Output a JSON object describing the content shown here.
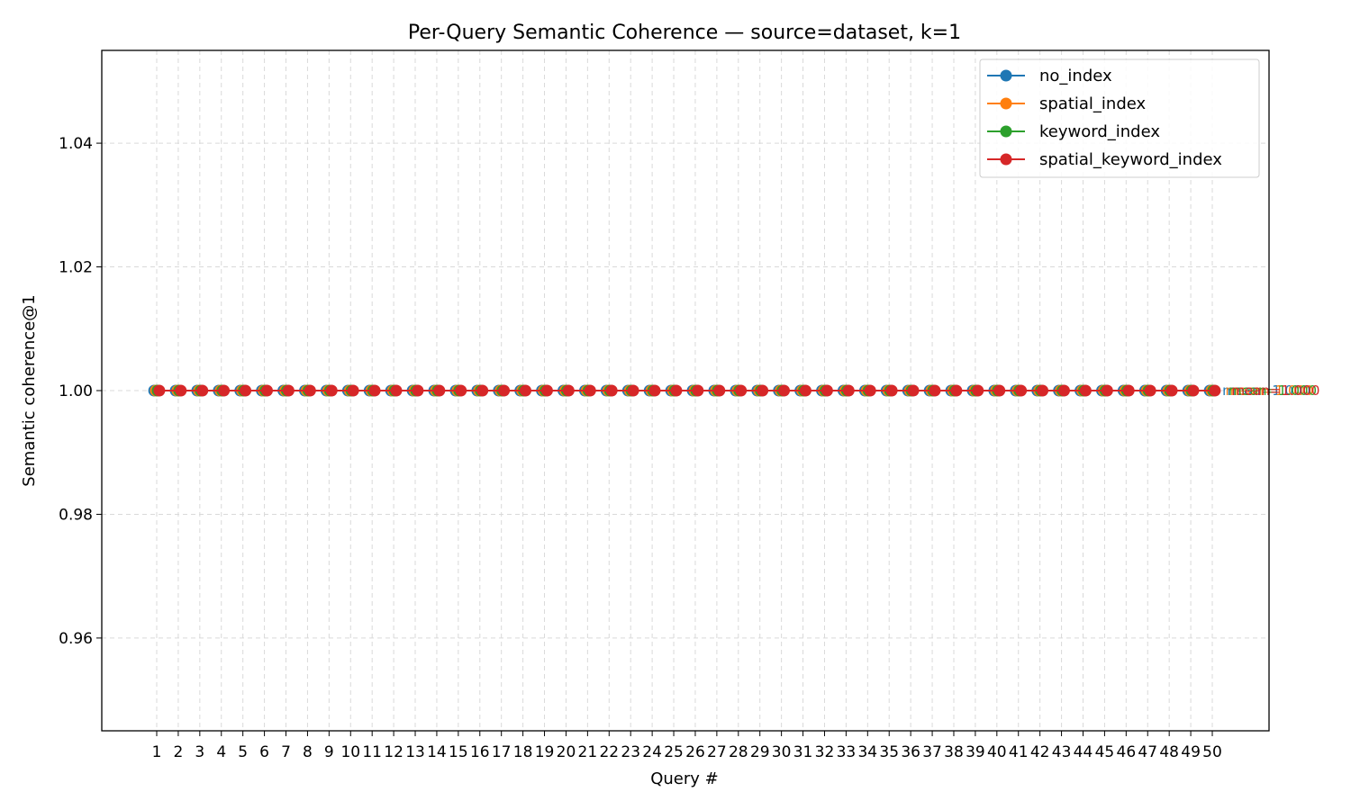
{
  "chart_data": {
    "type": "line",
    "title": "Per-Query Semantic Coherence — source=dataset, k=1",
    "xlabel": "Query #",
    "ylabel": "Semantic coherence@1",
    "x": [
      1,
      2,
      3,
      4,
      5,
      6,
      7,
      8,
      9,
      10,
      11,
      12,
      13,
      14,
      15,
      16,
      17,
      18,
      19,
      20,
      21,
      22,
      23,
      24,
      25,
      26,
      27,
      28,
      29,
      30,
      31,
      32,
      33,
      34,
      35,
      36,
      37,
      38,
      39,
      40,
      41,
      42,
      43,
      44,
      45,
      46,
      47,
      48,
      49,
      50
    ],
    "xticks": [
      "1",
      "2",
      "3",
      "4",
      "5",
      "6",
      "7",
      "8",
      "9",
      "10",
      "11",
      "12",
      "13",
      "14",
      "15",
      "16",
      "17",
      "18",
      "19",
      "20",
      "21",
      "22",
      "23",
      "24",
      "25",
      "26",
      "27",
      "28",
      "29",
      "30",
      "31",
      "32",
      "33",
      "34",
      "35",
      "36",
      "37",
      "38",
      "39",
      "40",
      "41",
      "42",
      "43",
      "44",
      "45",
      "46",
      "47",
      "48",
      "49",
      "50"
    ],
    "ylim": [
      0.945,
      1.055
    ],
    "yticks": [
      "0.96",
      "0.98",
      "1.00",
      "1.02",
      "1.04"
    ],
    "grid": true,
    "legend_position": "top-right",
    "series": [
      {
        "name": "no_index",
        "color": "#1f77b4",
        "offset": -0.12,
        "mean_label": "mean=1.000",
        "values": [
          1,
          1,
          1,
          1,
          1,
          1,
          1,
          1,
          1,
          1,
          1,
          1,
          1,
          1,
          1,
          1,
          1,
          1,
          1,
          1,
          1,
          1,
          1,
          1,
          1,
          1,
          1,
          1,
          1,
          1,
          1,
          1,
          1,
          1,
          1,
          1,
          1,
          1,
          1,
          1,
          1,
          1,
          1,
          1,
          1,
          1,
          1,
          1,
          1,
          1
        ]
      },
      {
        "name": "spatial_index",
        "color": "#ff7f0e",
        "offset": -0.04,
        "mean_label": "mean=1.000",
        "values": [
          1,
          1,
          1,
          1,
          1,
          1,
          1,
          1,
          1,
          1,
          1,
          1,
          1,
          1,
          1,
          1,
          1,
          1,
          1,
          1,
          1,
          1,
          1,
          1,
          1,
          1,
          1,
          1,
          1,
          1,
          1,
          1,
          1,
          1,
          1,
          1,
          1,
          1,
          1,
          1,
          1,
          1,
          1,
          1,
          1,
          1,
          1,
          1,
          1,
          1
        ]
      },
      {
        "name": "keyword_index",
        "color": "#2ca02c",
        "offset": 0.04,
        "mean_label": "mean=1.000",
        "values": [
          1,
          1,
          1,
          1,
          1,
          1,
          1,
          1,
          1,
          1,
          1,
          1,
          1,
          1,
          1,
          1,
          1,
          1,
          1,
          1,
          1,
          1,
          1,
          1,
          1,
          1,
          1,
          1,
          1,
          1,
          1,
          1,
          1,
          1,
          1,
          1,
          1,
          1,
          1,
          1,
          1,
          1,
          1,
          1,
          1,
          1,
          1,
          1,
          1,
          1
        ]
      },
      {
        "name": "spatial_keyword_index",
        "color": "#d62728",
        "offset": 0.12,
        "mean_label": "mean=1.000",
        "values": [
          1,
          1,
          1,
          1,
          1,
          1,
          1,
          1,
          1,
          1,
          1,
          1,
          1,
          1,
          1,
          1,
          1,
          1,
          1,
          1,
          1,
          1,
          1,
          1,
          1,
          1,
          1,
          1,
          1,
          1,
          1,
          1,
          1,
          1,
          1,
          1,
          1,
          1,
          1,
          1,
          1,
          1,
          1,
          1,
          1,
          1,
          1,
          1,
          1,
          1
        ]
      }
    ]
  }
}
